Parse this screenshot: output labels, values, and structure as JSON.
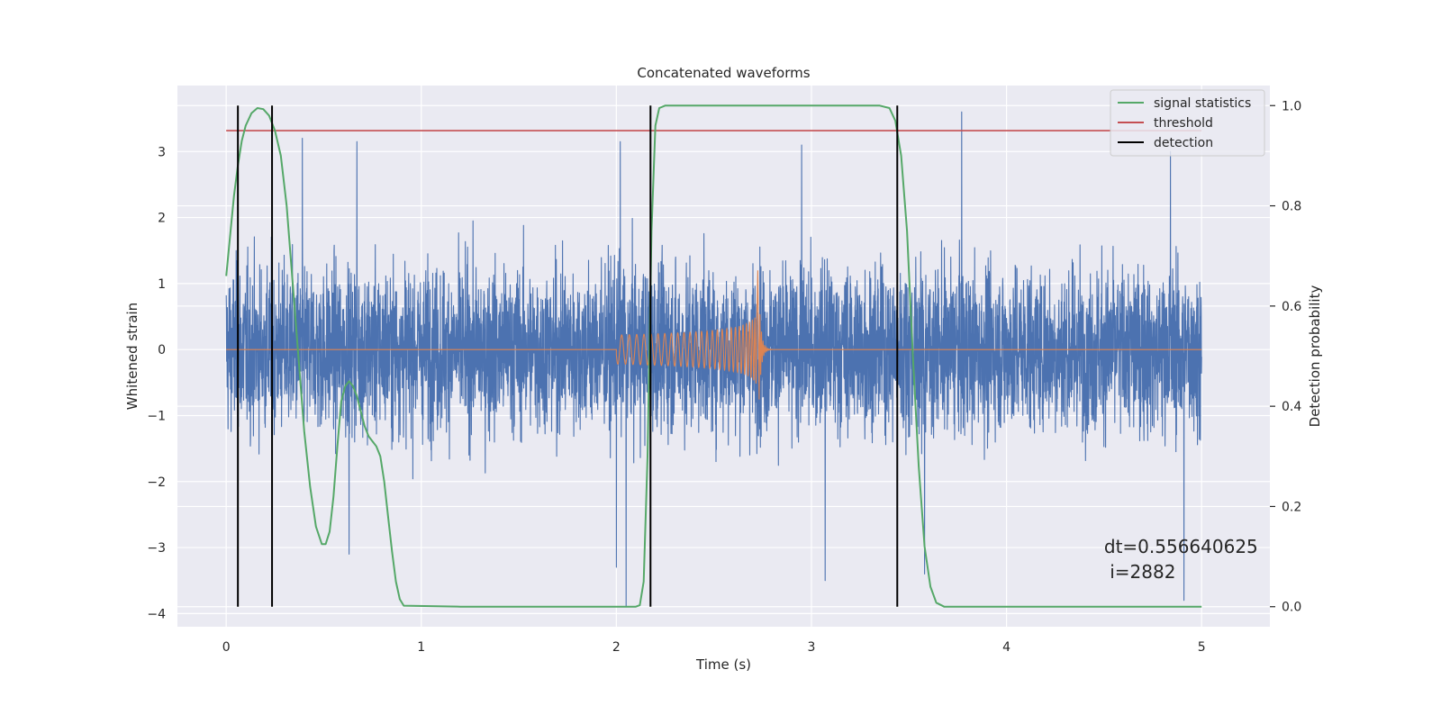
{
  "chart_data": {
    "type": "line",
    "title": "Concatenated waveforms",
    "xlabel": "Time (s)",
    "ylabel": "Whitened strain",
    "y2label": "Detection probability",
    "xlim": [
      -0.25,
      5.35
    ],
    "ylim": [
      -4.2,
      4.0
    ],
    "y2lim": [
      -0.04,
      1.04
    ],
    "xticks": [
      0,
      1,
      2,
      3,
      4,
      5
    ],
    "xtick_labels": [
      "0",
      "1",
      "2",
      "3",
      "4",
      "5"
    ],
    "yticks": [
      -4,
      -3,
      -2,
      -1,
      0,
      1,
      2,
      3
    ],
    "ytick_labels": [
      "−4",
      "−3",
      "−2",
      "−1",
      "0",
      "1",
      "2",
      "3"
    ],
    "y2ticks": [
      0.0,
      0.2,
      0.4,
      0.6,
      0.8,
      1.0
    ],
    "y2tick_labels": [
      "0.0",
      "0.2",
      "0.4",
      "0.6",
      "0.8",
      "1.0"
    ],
    "grid": true,
    "background": "#eaeaf2",
    "legend_position": "top-right",
    "legend": [
      {
        "label": "signal statistics",
        "color": "#55a868"
      },
      {
        "label": "threshold",
        "color": "#c44e52"
      },
      {
        "label": "detection",
        "color": "#000000"
      }
    ],
    "series": [
      {
        "name": "whitened strain",
        "axis": "left",
        "color": "#4c72b0",
        "x_range": [
          0,
          5
        ],
        "typical_envelope": [
          -1.5,
          1.5
        ],
        "max_values": [
          {
            "x": 0.39,
            "y": 3.2
          },
          {
            "x": 0.67,
            "y": 3.15
          },
          {
            "x": 2.02,
            "y": 3.15
          },
          {
            "x": 2.95,
            "y": 3.1
          },
          {
            "x": 3.77,
            "y": 3.6
          },
          {
            "x": 4.84,
            "y": 3.0
          }
        ],
        "min_values": [
          {
            "x": 0.63,
            "y": -3.1
          },
          {
            "x": 2.0,
            "y": -3.3
          },
          {
            "x": 2.05,
            "y": -3.9
          },
          {
            "x": 3.07,
            "y": -3.5
          },
          {
            "x": 3.58,
            "y": -3.4
          },
          {
            "x": 4.91,
            "y": -3.8
          }
        ]
      },
      {
        "name": "injected waveform",
        "axis": "left",
        "color": "#dd8452",
        "baseline": 0,
        "chirp_start": 2.0,
        "chirp_end": 2.74,
        "start_amplitude": 0.22,
        "peak": {
          "x": 2.72,
          "y_max": 1.2,
          "y_min": -0.75
        }
      },
      {
        "name": "signal statistics",
        "axis": "right",
        "color": "#55a868",
        "points": [
          [
            0,
            0.66
          ],
          [
            0.02,
            0.74
          ],
          [
            0.04,
            0.82
          ],
          [
            0.06,
            0.88
          ],
          [
            0.08,
            0.93
          ],
          [
            0.1,
            0.96
          ],
          [
            0.13,
            0.985
          ],
          [
            0.16,
            0.995
          ],
          [
            0.19,
            0.993
          ],
          [
            0.22,
            0.98
          ],
          [
            0.25,
            0.95
          ],
          [
            0.28,
            0.9
          ],
          [
            0.31,
            0.8
          ],
          [
            0.34,
            0.65
          ],
          [
            0.37,
            0.5
          ],
          [
            0.4,
            0.35
          ],
          [
            0.43,
            0.24
          ],
          [
            0.46,
            0.16
          ],
          [
            0.49,
            0.125
          ],
          [
            0.51,
            0.125
          ],
          [
            0.53,
            0.15
          ],
          [
            0.55,
            0.22
          ],
          [
            0.57,
            0.32
          ],
          [
            0.59,
            0.41
          ],
          [
            0.61,
            0.44
          ],
          [
            0.63,
            0.45
          ],
          [
            0.65,
            0.44
          ],
          [
            0.67,
            0.42
          ],
          [
            0.69,
            0.39
          ],
          [
            0.71,
            0.36
          ],
          [
            0.73,
            0.34
          ],
          [
            0.75,
            0.33
          ],
          [
            0.77,
            0.32
          ],
          [
            0.79,
            0.3
          ],
          [
            0.81,
            0.25
          ],
          [
            0.83,
            0.18
          ],
          [
            0.85,
            0.11
          ],
          [
            0.87,
            0.05
          ],
          [
            0.89,
            0.015
          ],
          [
            0.91,
            0.002
          ],
          [
            1.2,
            0.0
          ],
          [
            2.1,
            0.0
          ],
          [
            2.12,
            0.003
          ],
          [
            2.14,
            0.05
          ],
          [
            2.16,
            0.3
          ],
          [
            2.18,
            0.75
          ],
          [
            2.2,
            0.96
          ],
          [
            2.22,
            0.995
          ],
          [
            2.25,
            1.0
          ],
          [
            3.35,
            1.0
          ],
          [
            3.4,
            0.995
          ],
          [
            3.43,
            0.97
          ],
          [
            3.46,
            0.9
          ],
          [
            3.49,
            0.75
          ],
          [
            3.52,
            0.5
          ],
          [
            3.55,
            0.28
          ],
          [
            3.58,
            0.12
          ],
          [
            3.61,
            0.04
          ],
          [
            3.64,
            0.008
          ],
          [
            3.68,
            0.0
          ],
          [
            5.0,
            0.0
          ]
        ]
      },
      {
        "name": "threshold",
        "axis": "right",
        "color": "#c44e52",
        "x": [
          0,
          5
        ],
        "y": [
          0.95,
          0.95
        ]
      },
      {
        "name": "detection",
        "axis": "right",
        "color": "#000000",
        "x_positions": [
          0.06,
          0.235,
          2.175,
          3.44
        ],
        "y_range": [
          0.0,
          1.0
        ]
      }
    ],
    "annotation": {
      "line1": "dt=0.556640625",
      "line2": " i=2882",
      "x": 4.5,
      "y": -3.0
    }
  }
}
